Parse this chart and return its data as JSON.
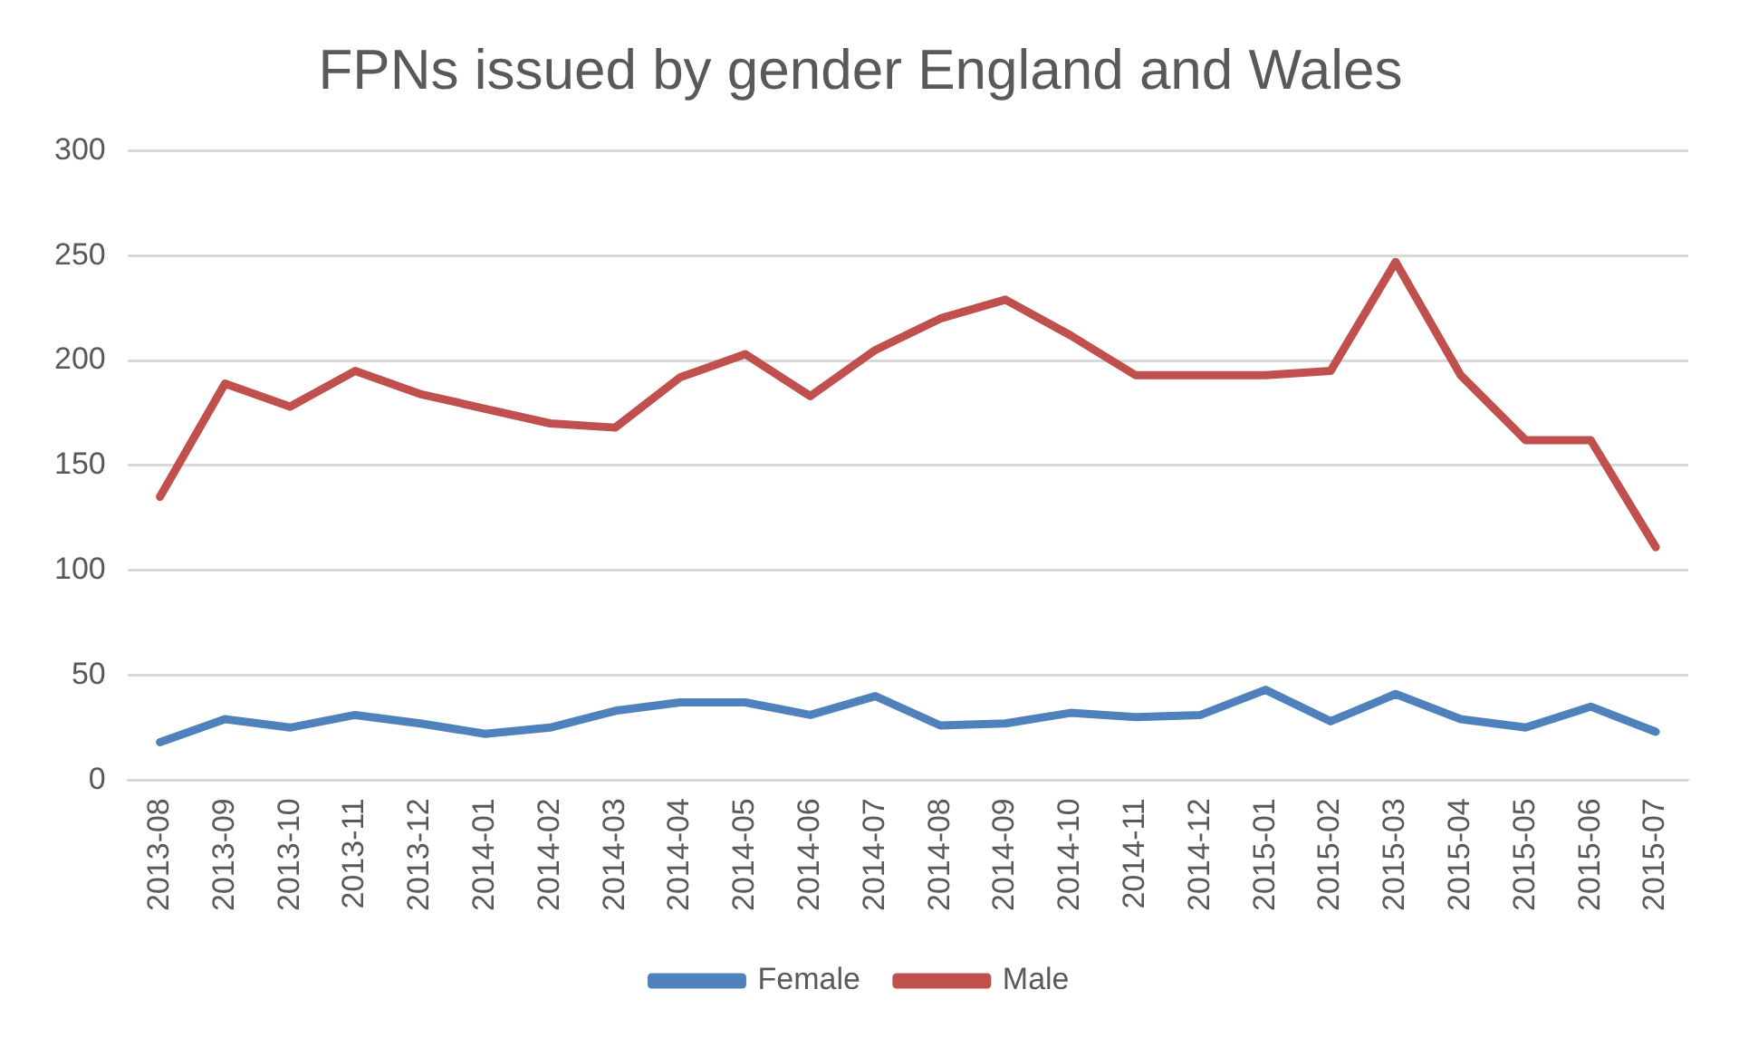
{
  "chart_data": {
    "type": "line",
    "title": "FPNs issued by gender England and Wales",
    "categories": [
      "2013-08",
      "2013-09",
      "2013-10",
      "2013-11",
      "2013-12",
      "2014-01",
      "2014-02",
      "2014-03",
      "2014-04",
      "2014-05",
      "2014-06",
      "2014-07",
      "2014-08",
      "2014-09",
      "2014-10",
      "2014-11",
      "2014-12",
      "2015-01",
      "2015-02",
      "2015-03",
      "2015-04",
      "2015-05",
      "2015-06",
      "2015-07"
    ],
    "series": [
      {
        "name": "Female",
        "color": "#4f81bd",
        "values": [
          18,
          29,
          25,
          31,
          27,
          22,
          25,
          33,
          37,
          37,
          31,
          40,
          26,
          27,
          32,
          30,
          31,
          43,
          28,
          41,
          29,
          25,
          35,
          23
        ]
      },
      {
        "name": "Male",
        "color": "#c0504d",
        "values": [
          135,
          189,
          178,
          195,
          184,
          177,
          170,
          168,
          192,
          203,
          183,
          205,
          220,
          229,
          212,
          193,
          193,
          193,
          195,
          247,
          193,
          162,
          162,
          111
        ]
      }
    ],
    "ylim": [
      0,
      300
    ],
    "yticks": [
      0,
      50,
      100,
      150,
      200,
      250,
      300
    ],
    "grid": "y",
    "legend": "bottom",
    "marker": "none",
    "line_style": "solid"
  }
}
